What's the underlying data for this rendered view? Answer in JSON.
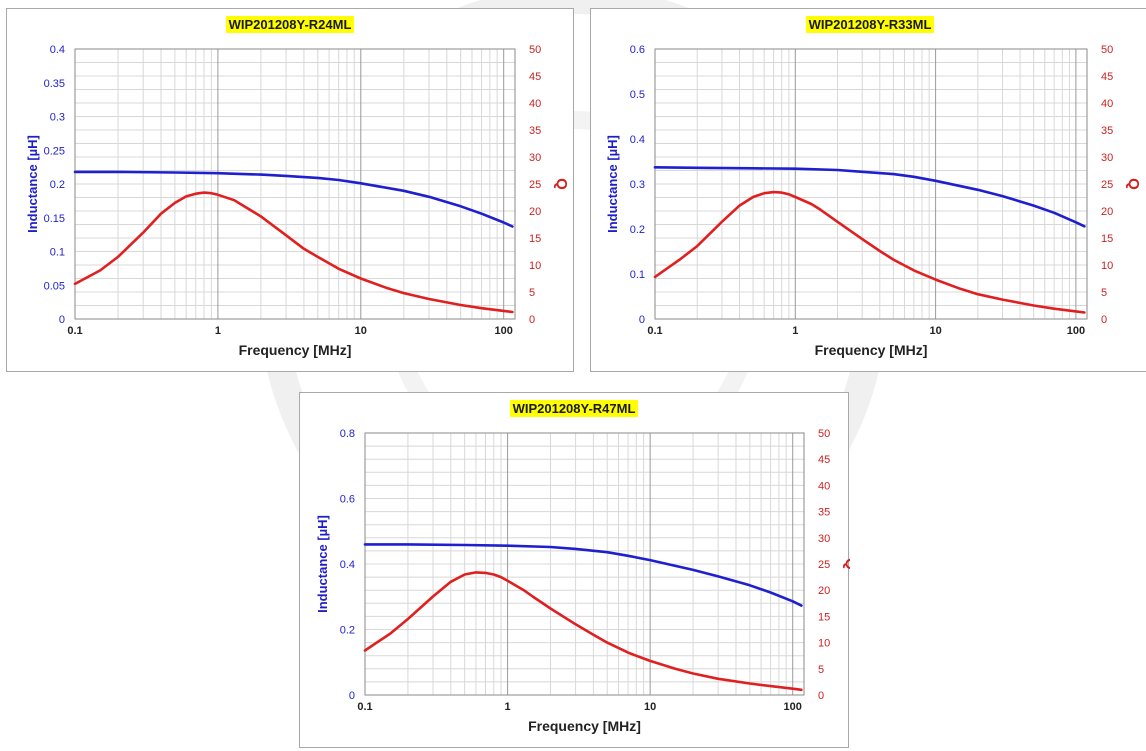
{
  "chart_data": [
    {
      "type": "line",
      "title": "WIP201208Y-R24ML",
      "xlabel": "Frequency [MHz]",
      "ylabel": "Inductance [µH]",
      "y2label": "Q",
      "xscale": "log",
      "xlim": [
        0.1,
        120
      ],
      "xticks": [
        "0.1",
        "1",
        "10",
        "100"
      ],
      "ylim": [
        0,
        0.4
      ],
      "yticks": [
        "0",
        "0.05",
        "0.1",
        "0.15",
        "0.2",
        "0.25",
        "0.3",
        "0.35",
        "0.4"
      ],
      "y2lim": [
        0,
        50
      ],
      "y2ticks": [
        "0",
        "5",
        "10",
        "15",
        "20",
        "25",
        "30",
        "35",
        "40",
        "45",
        "50"
      ],
      "grid": true,
      "series": [
        {
          "axis": "left",
          "color": "#1f1fd0",
          "x": [
            0.1,
            0.2,
            0.5,
            1,
            2,
            3,
            5,
            7,
            10,
            20,
            30,
            50,
            70,
            100,
            115
          ],
          "values": [
            0.218,
            0.218,
            0.217,
            0.216,
            0.214,
            0.212,
            0.209,
            0.206,
            0.201,
            0.19,
            0.181,
            0.167,
            0.156,
            0.143,
            0.137
          ]
        },
        {
          "axis": "right",
          "color": "#e02020",
          "x": [
            0.1,
            0.15,
            0.2,
            0.3,
            0.4,
            0.5,
            0.6,
            0.7,
            0.8,
            0.9,
            1,
            1.3,
            1.5,
            2,
            3,
            4,
            5,
            7,
            10,
            15,
            20,
            30,
            50,
            70,
            100,
            115
          ],
          "values": [
            6.5,
            9,
            11.5,
            16,
            19.5,
            21.5,
            22.7,
            23.2,
            23.4,
            23.3,
            23,
            22,
            21,
            19,
            15.5,
            13,
            11.5,
            9.3,
            7.5,
            5.8,
            4.8,
            3.7,
            2.6,
            2.0,
            1.5,
            1.3
          ]
        }
      ]
    },
    {
      "type": "line",
      "title": "WIP201208Y-R33ML",
      "xlabel": "Frequency [MHz]",
      "ylabel": "Inductance [µH]",
      "y2label": "Q",
      "xscale": "log",
      "xlim": [
        0.1,
        120
      ],
      "xticks": [
        "0.1",
        "1",
        "10",
        "100"
      ],
      "ylim": [
        0,
        0.6
      ],
      "yticks": [
        "0",
        "0.1",
        "0.2",
        "0.3",
        "0.4",
        "0.5",
        "0.6"
      ],
      "y2lim": [
        0,
        50
      ],
      "y2ticks": [
        "0",
        "5",
        "10",
        "15",
        "20",
        "25",
        "30",
        "35",
        "40",
        "45",
        "50"
      ],
      "grid": true,
      "series": [
        {
          "axis": "left",
          "color": "#1f1fd0",
          "x": [
            0.1,
            0.2,
            0.5,
            1,
            2,
            3,
            5,
            7,
            10,
            20,
            30,
            50,
            70,
            100,
            115
          ],
          "values": [
            0.337,
            0.336,
            0.335,
            0.334,
            0.331,
            0.327,
            0.322,
            0.316,
            0.307,
            0.287,
            0.273,
            0.252,
            0.236,
            0.215,
            0.206
          ]
        },
        {
          "axis": "right",
          "color": "#e02020",
          "x": [
            0.1,
            0.15,
            0.2,
            0.3,
            0.4,
            0.5,
            0.6,
            0.7,
            0.8,
            0.9,
            1,
            1.3,
            1.5,
            2,
            3,
            4,
            5,
            7,
            10,
            15,
            20,
            30,
            50,
            70,
            100,
            115
          ],
          "values": [
            7.8,
            11,
            13.5,
            18,
            21,
            22.6,
            23.3,
            23.5,
            23.4,
            23.1,
            22.6,
            21.3,
            20.3,
            18,
            14.8,
            12.6,
            11,
            9,
            7.3,
            5.6,
            4.6,
            3.6,
            2.5,
            1.9,
            1.4,
            1.2
          ]
        }
      ]
    },
    {
      "type": "line",
      "title": "WIP201208Y-R47ML",
      "xlabel": "Frequency [MHz]",
      "ylabel": "Inductance [µH]",
      "y2label": "Q",
      "xscale": "log",
      "xlim": [
        0.1,
        120
      ],
      "xticks": [
        "0.1",
        "1",
        "10",
        "100"
      ],
      "ylim": [
        0,
        0.8
      ],
      "yticks": [
        "0",
        "0.2",
        "0.4",
        "0.6",
        "0.8"
      ],
      "y2lim": [
        0,
        50
      ],
      "y2ticks": [
        "0",
        "5",
        "10",
        "15",
        "20",
        "25",
        "30",
        "35",
        "40",
        "45",
        "50"
      ],
      "grid": true,
      "series": [
        {
          "axis": "left",
          "color": "#1f1fd0",
          "x": [
            0.1,
            0.2,
            0.5,
            1,
            2,
            3,
            5,
            7,
            10,
            20,
            30,
            50,
            70,
            100,
            115
          ],
          "values": [
            0.46,
            0.46,
            0.458,
            0.456,
            0.452,
            0.446,
            0.436,
            0.425,
            0.412,
            0.382,
            0.362,
            0.335,
            0.313,
            0.286,
            0.273
          ]
        },
        {
          "axis": "right",
          "color": "#e02020",
          "x": [
            0.1,
            0.15,
            0.2,
            0.3,
            0.4,
            0.5,
            0.6,
            0.7,
            0.8,
            0.9,
            1,
            1.3,
            1.5,
            2,
            3,
            4,
            5,
            7,
            10,
            15,
            20,
            30,
            50,
            70,
            100,
            115
          ],
          "values": [
            8.5,
            11.7,
            14.5,
            18.8,
            21.6,
            23,
            23.4,
            23.3,
            23,
            22.5,
            21.8,
            20,
            18.8,
            16.5,
            13.5,
            11.5,
            10,
            8.1,
            6.5,
            5,
            4.1,
            3.1,
            2.2,
            1.7,
            1.2,
            1.0
          ]
        }
      ]
    }
  ]
}
